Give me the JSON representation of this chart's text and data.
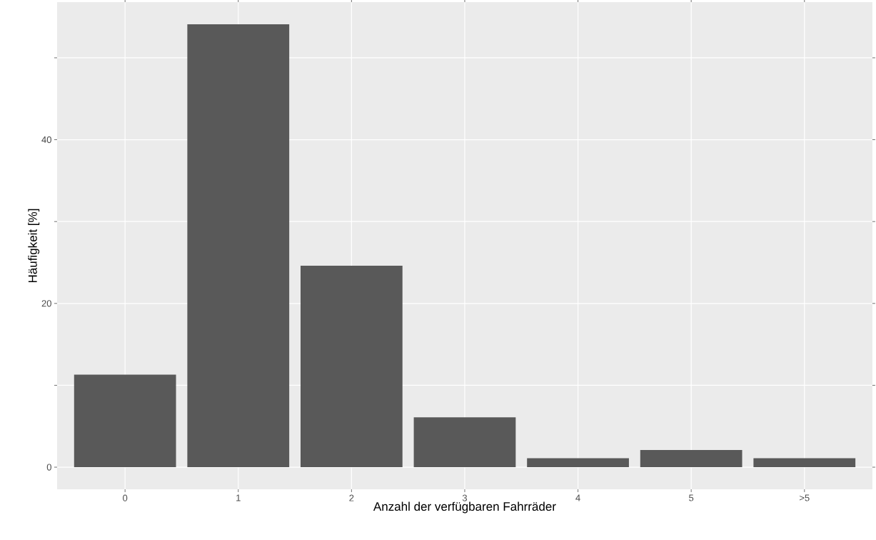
{
  "chart_data": {
    "type": "bar",
    "xlabel": "Anzahl der verfügbaren Fahrräder",
    "ylabel": "Häufigkeit [%]",
    "categories": [
      "0",
      "1",
      "2",
      "3",
      "4",
      "5",
      ">5"
    ],
    "values": [
      11.3,
      54.1,
      24.6,
      6.1,
      1.1,
      2.1,
      1.1
    ],
    "color": "#595959",
    "ylim": [
      -2.7,
      56.8
    ],
    "yticks": [
      0,
      {
        "value": 10,
        "label": null
      },
      20,
      {
        "value": 30,
        "label": null
      },
      40,
      {
        "value": 50,
        "label": null
      }
    ],
    "grid": true
  }
}
